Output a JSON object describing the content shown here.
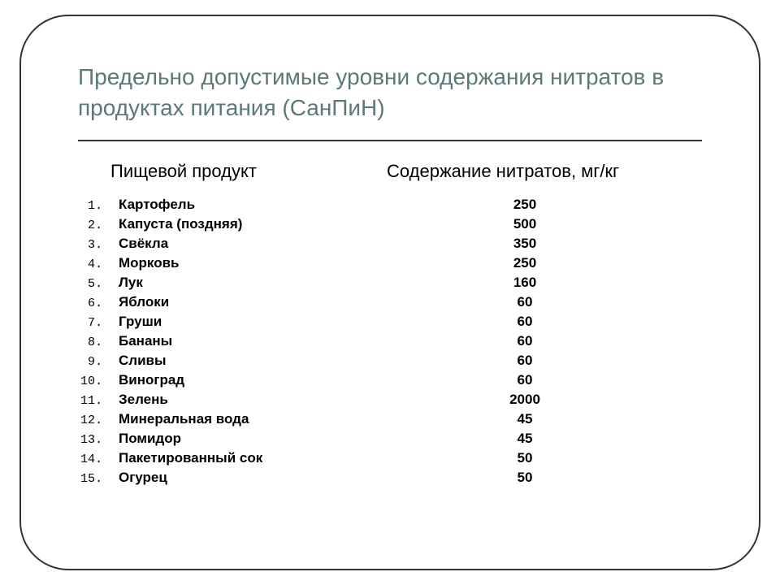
{
  "title": "Предельно допустимые уровни содержания нитратов в продуктах питания (СанПиН)",
  "columns": {
    "product": "Пищевой продукт",
    "nitrates": "Содержание нитратов, мг/кг"
  },
  "rows": [
    {
      "num": "1.",
      "name": "Картофель",
      "value": "250"
    },
    {
      "num": "2.",
      "name": "Капуста (поздняя)",
      "value": "500"
    },
    {
      "num": "3.",
      "name": "Свёкла",
      "value": "350"
    },
    {
      "num": "4.",
      "name": "Морковь",
      "value": "250"
    },
    {
      "num": "5.",
      "name": "Лук",
      "value": "160"
    },
    {
      "num": "6.",
      "name": "Яблоки",
      "value": "60"
    },
    {
      "num": "7.",
      "name": "Груши",
      "value": "60"
    },
    {
      "num": "8.",
      "name": "Бананы",
      "value": "60"
    },
    {
      "num": "9.",
      "name": "Сливы",
      "value": "60"
    },
    {
      "num": "10.",
      "name": "Виноград",
      "value": "60"
    },
    {
      "num": "11.",
      "name": "Зелень",
      "value": "2000"
    },
    {
      "num": "12.",
      "name": "Минеральная вода",
      "value": "45"
    },
    {
      "num": "13.",
      "name": "Помидор",
      "value": "45"
    },
    {
      "num": "14.",
      "name": "Пакетированный сок",
      "value": "50"
    },
    {
      "num": "15.",
      "name": "Огурец",
      "value": "50"
    }
  ],
  "style": {
    "title_color": "#5a7a7a",
    "title_fontsize": 28,
    "border_color": "#333333",
    "border_radius": 60,
    "header_fontsize": 22,
    "row_fontsize": 17,
    "background": "#ffffff"
  }
}
